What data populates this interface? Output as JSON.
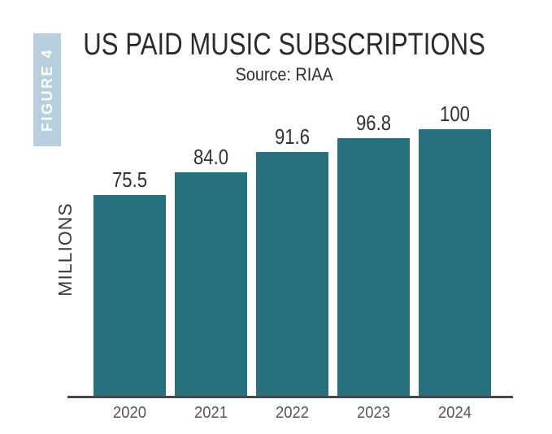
{
  "figure_label": "FIGURE 4",
  "title": "US PAID MUSIC SUBSCRIPTIONS",
  "subtitle": "Source: RIAA",
  "y_axis_label": "MILLIONS",
  "colors": {
    "bar": "#28707e",
    "badge_bg": "#b6cedd",
    "badge_text": "#ffffff",
    "title_text": "#2b2b2b",
    "subtitle_text": "#2e2e2e",
    "axis_label_text": "#3a3c3e",
    "tick_text": "#55575a",
    "value_text": "#2f3133",
    "axis_line": "#43464a",
    "background": "#ffffff"
  },
  "chart_data": {
    "type": "bar",
    "title": "US PAID MUSIC SUBSCRIPTIONS",
    "subtitle": "Source: RIAA",
    "xlabel": "",
    "ylabel": "MILLIONS",
    "categories": [
      "2020",
      "2021",
      "2022",
      "2023",
      "2024"
    ],
    "values": [
      75.5,
      84.0,
      91.6,
      96.8,
      100
    ],
    "value_labels": [
      "75.5",
      "84.0",
      "91.6",
      "96.8",
      "100"
    ],
    "ylim": [
      0,
      100
    ],
    "grid": false,
    "legend": false,
    "value_labels_position": "above-bars",
    "y_axis_ticks_visible": false
  }
}
